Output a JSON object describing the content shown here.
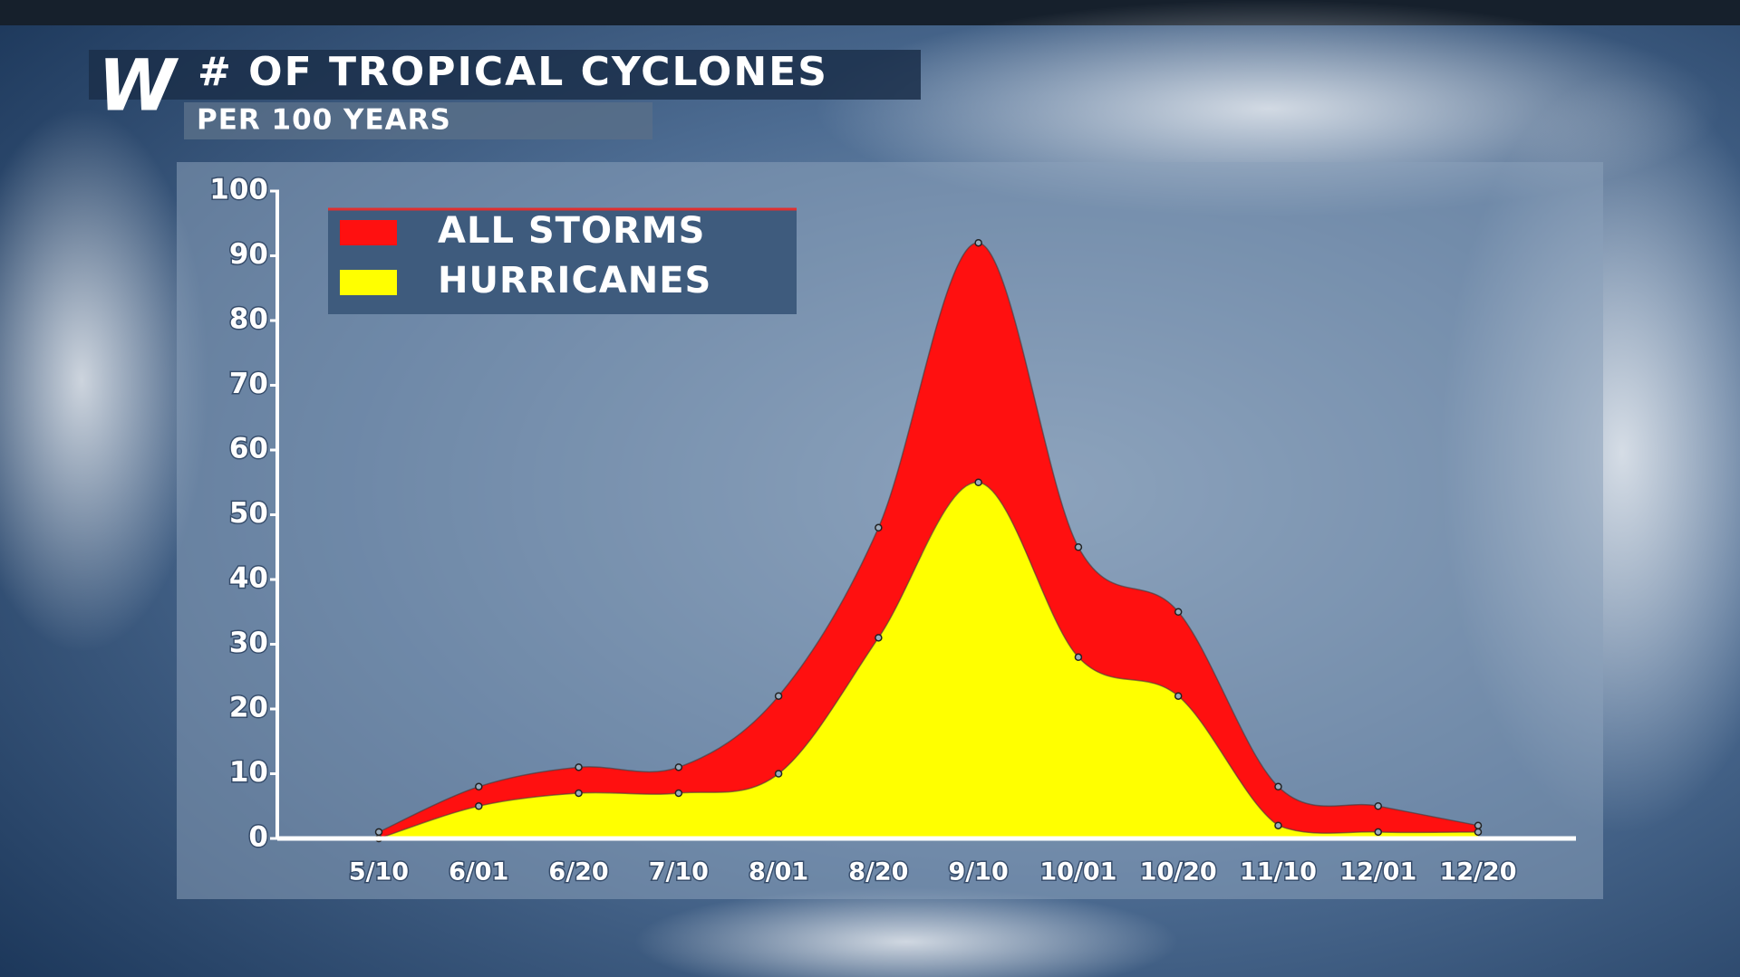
{
  "logo": "W",
  "chart_data": {
    "type": "area",
    "title": "# OF TROPICAL CYCLONES",
    "subtitle": "PER 100 YEARS",
    "categories": [
      "5/10",
      "6/01",
      "6/20",
      "7/10",
      "8/01",
      "8/20",
      "9/10",
      "10/01",
      "10/20",
      "11/10",
      "12/01",
      "12/20"
    ],
    "series": [
      {
        "name": "ALL STORMS",
        "color": "#ff1010",
        "values": [
          1,
          8,
          11,
          11,
          22,
          48,
          92,
          45,
          35,
          8,
          5,
          2
        ]
      },
      {
        "name": "HURRICANES",
        "color": "#ffff00",
        "values": [
          0,
          5,
          7,
          7,
          10,
          31,
          55,
          28,
          22,
          2,
          1,
          1
        ]
      }
    ],
    "ylim": [
      0,
      100
    ],
    "yticks": [
      0,
      10,
      20,
      30,
      40,
      50,
      60,
      70,
      80,
      90,
      100
    ],
    "legend": "top-left"
  }
}
